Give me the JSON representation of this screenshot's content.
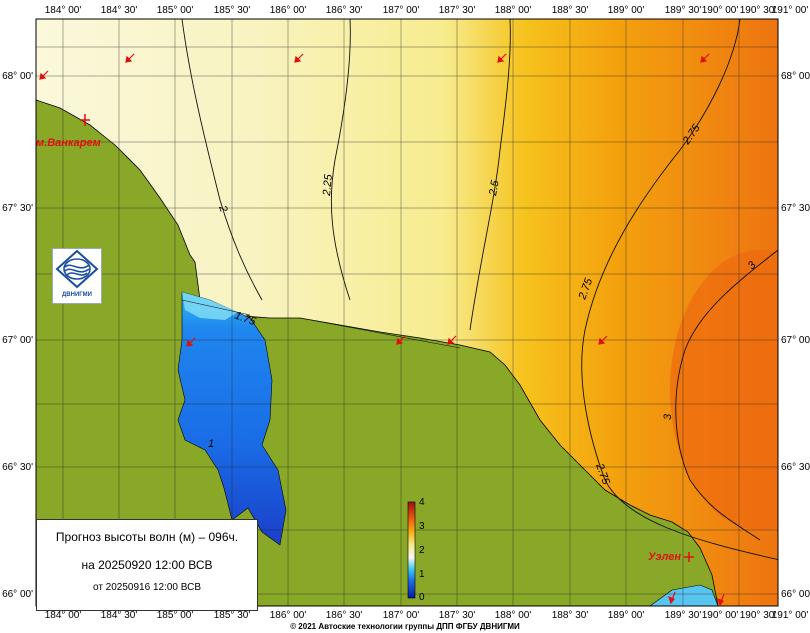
{
  "map": {
    "top_lon_labels": [
      "184° 00'",
      "184° 30'",
      "185° 00'",
      "185° 30'",
      "186° 00'",
      "186° 30'",
      "187° 00'",
      "187° 30'",
      "188° 00'",
      "188° 30'",
      "189° 00'",
      "189° 30'",
      "190° 00'",
      "190° 30'",
      "191° 00'"
    ],
    "bottom_lon_labels": [
      "184° 00'",
      "184° 30'",
      "185° 00'",
      "185° 30'",
      "186° 00'",
      "186° 30'",
      "187° 00'",
      "187° 30'",
      "188° 00'",
      "188° 30'",
      "189° 00'",
      "189° 30'",
      "190° 00'",
      "190° 30'",
      "191° 00'"
    ],
    "lat_labels": [
      "68° 00'",
      "67° 30'",
      "67° 00'",
      "66° 30'",
      "66° 00'"
    ],
    "contour_labels": [
      "2",
      "2.25",
      "2.5",
      "2.75",
      "2.75",
      "2.75",
      "3",
      "3",
      "1.75",
      "1"
    ],
    "places": {
      "vankarem": "м.Ванкарем",
      "uelen": "Уэлен"
    },
    "colorbar": {
      "ticks": [
        "4",
        "3",
        "2",
        "1",
        "0"
      ],
      "min": 0,
      "max": 4
    },
    "colors": {
      "land": "#8aa828",
      "low_sea": "#1b6ee8",
      "mid_sea": "#f7f4c8",
      "high_sea": "#f07a10",
      "arrow": "#e01010"
    },
    "arrows_direction": "southwest"
  },
  "info": {
    "title": "Прогноз высоты волн (м) – 096ч.",
    "valid": "на 20250920 12:00 ВСВ",
    "issued": "от 20250916 12:00 ВСВ"
  },
  "logo": {
    "label": "ДВНИГМИ"
  },
  "copyright": "© 2021 Автоские технологии группы ДПП ФГБУ ДВНИГМИ"
}
